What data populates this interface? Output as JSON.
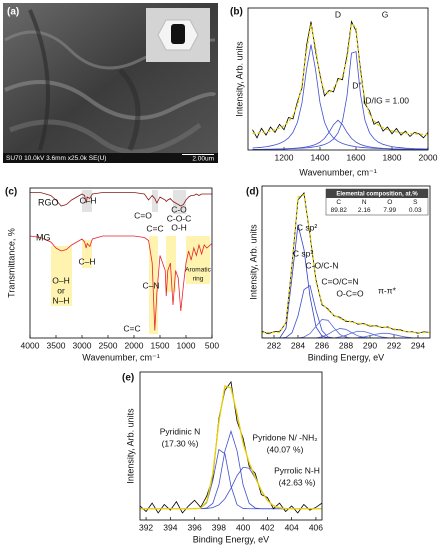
{
  "image_panel": {
    "label": "(a)",
    "info": "SU70 10.0kV 3.6mm x25.0k SE(U)",
    "scale_bar": "2.00um"
  },
  "chart_data": [
    {
      "type": "line",
      "label": "(b)",
      "xlabel": "Wavenumber, cm⁻¹",
      "ylabel": "Intensity, Arb. units",
      "xlim": [
        1000,
        2000
      ],
      "xticks": [
        1200,
        1400,
        1600,
        1800,
        2000
      ],
      "ylim": [
        0,
        1.05
      ],
      "x": [
        1025,
        1050,
        1075,
        1100,
        1125,
        1150,
        1175,
        1200,
        1225,
        1250,
        1275,
        1300,
        1325,
        1350,
        1375,
        1400,
        1425,
        1450,
        1475,
        1500,
        1525,
        1550,
        1575,
        1600,
        1625,
        1650,
        1675,
        1700,
        1725,
        1750,
        1775,
        1800,
        1825,
        1850,
        1875,
        1900,
        1925,
        1950,
        1975,
        2000
      ],
      "series": [
        {
          "color": "#3f4fd0",
          "values": [
            0.015,
            0.017,
            0.02,
            0.024,
            0.03,
            0.038,
            0.048,
            0.064,
            0.089,
            0.131,
            0.206,
            0.35,
            0.596,
            0.78,
            0.596,
            0.35,
            0.206,
            0.131,
            0.089,
            0.064,
            0.048,
            0.038,
            0.03,
            0.024,
            0.02,
            0.017,
            0.015,
            0.013,
            0.011,
            0.01,
            0.009,
            0.008,
            0.007,
            0.006,
            0.006,
            0.005,
            0.005,
            0.005,
            0.004,
            0.004
          ]
        },
        {
          "color": "#3f4fd0",
          "values": [
            0.004,
            0.004,
            0.004,
            0.005,
            0.005,
            0.006,
            0.007,
            0.008,
            0.009,
            0.01,
            0.012,
            0.014,
            0.016,
            0.02,
            0.025,
            0.031,
            0.041,
            0.056,
            0.081,
            0.126,
            0.213,
            0.4,
            0.716,
            0.727,
            0.411,
            0.219,
            0.128,
            0.083,
            0.057,
            0.042,
            0.032,
            0.025,
            0.02,
            0.017,
            0.014,
            0.012,
            0.01,
            0.009,
            0.008,
            0.007
          ]
        },
        {
          "color": "#3f4fd0",
          "values": [
            0.003,
            0.004,
            0.004,
            0.005,
            0.005,
            0.006,
            0.007,
            0.008,
            0.01,
            0.012,
            0.015,
            0.018,
            0.023,
            0.03,
            0.041,
            0.058,
            0.086,
            0.13,
            0.187,
            0.22,
            0.187,
            0.13,
            0.086,
            0.058,
            0.041,
            0.03,
            0.023,
            0.018,
            0.015,
            0.012,
            0.01,
            0.008,
            0.007,
            0.006,
            0.005,
            0.005,
            0.004,
            0.004,
            0.003,
            0.003
          ]
        },
        {
          "color": "#000000",
          "values": [
            0.15,
            0.09,
            0.16,
            0.11,
            0.17,
            0.13,
            0.19,
            0.15,
            0.24,
            0.23,
            0.36,
            0.46,
            0.77,
            0.95,
            0.73,
            0.56,
            0.4,
            0.44,
            0.43,
            0.53,
            0.52,
            0.7,
            0.95,
            0.88,
            0.6,
            0.34,
            0.29,
            0.19,
            0.21,
            0.14,
            0.17,
            0.12,
            0.16,
            0.11,
            0.14,
            0.1,
            0.13,
            0.12,
            0.09,
            0.13
          ]
        },
        {
          "color": "#e6cf00",
          "dashed": true,
          "values": [
            0.122,
            0.125,
            0.128,
            0.134,
            0.14,
            0.15,
            0.162,
            0.18,
            0.208,
            0.253,
            0.333,
            0.482,
            0.735,
            0.93,
            0.762,
            0.539,
            0.433,
            0.417,
            0.457,
            0.51,
            0.548,
            0.668,
            0.932,
            0.909,
            0.572,
            0.366,
            0.266,
            0.214,
            0.183,
            0.164,
            0.151,
            0.141,
            0.134,
            0.129,
            0.125,
            0.122,
            0.119,
            0.118,
            0.115,
            0.114
          ]
        }
      ],
      "annotations": [
        "D",
        "G",
        "D''",
        "ID/IG = 1.00"
      ]
    },
    {
      "type": "line",
      "label": "(c)",
      "xlabel": "Wavenumber, cm⁻¹",
      "ylabel": "Transmittance, %",
      "xlim": [
        4000,
        500
      ],
      "xticks": [
        4000,
        3500,
        3000,
        2500,
        2000,
        1500,
        1000,
        500
      ],
      "ylim": [
        0,
        1
      ],
      "x": [
        4000,
        3800,
        3600,
        3500,
        3400,
        3300,
        3200,
        3000,
        2950,
        2920,
        2900,
        2850,
        2800,
        2600,
        2400,
        2200,
        2000,
        1800,
        1720,
        1650,
        1600,
        1560,
        1500,
        1450,
        1400,
        1380,
        1350,
        1300,
        1250,
        1200,
        1150,
        1100,
        1050,
        1000,
        950,
        900,
        850,
        800,
        750,
        700,
        650,
        600,
        500
      ],
      "series": [
        {
          "name": "RGO",
          "color": "#8b1a1a",
          "values": [
            0.97,
            0.97,
            0.95,
            0.92,
            0.88,
            0.89,
            0.92,
            0.96,
            0.95,
            0.9,
            0.94,
            0.93,
            0.96,
            0.97,
            0.97,
            0.97,
            0.97,
            0.96,
            0.92,
            0.95,
            0.93,
            0.9,
            0.94,
            0.93,
            0.92,
            0.91,
            0.92,
            0.93,
            0.91,
            0.9,
            0.89,
            0.88,
            0.89,
            0.92,
            0.94,
            0.95,
            0.95,
            0.96,
            0.95,
            0.96,
            0.96,
            0.96,
            0.96
          ]
        },
        {
          "name": "MG",
          "color": "#e8242a",
          "values": [
            0.68,
            0.67,
            0.64,
            0.6,
            0.58,
            0.59,
            0.62,
            0.66,
            0.64,
            0.6,
            0.63,
            0.61,
            0.66,
            0.68,
            0.68,
            0.68,
            0.68,
            0.67,
            0.65,
            0.5,
            0.05,
            0.3,
            0.55,
            0.5,
            0.45,
            0.28,
            0.45,
            0.5,
            0.22,
            0.45,
            0.4,
            0.18,
            0.35,
            0.5,
            0.58,
            0.52,
            0.6,
            0.55,
            0.62,
            0.56,
            0.62,
            0.6,
            0.63
          ]
        }
      ],
      "annotations": [
        "C–H",
        "C=O",
        "C=C",
        "C-O",
        "C-O-C",
        "O-H",
        "O–H",
        "or",
        "N–H",
        "C–H",
        "C=C",
        "C–N",
        "Aromatic",
        "ring"
      ]
    },
    {
      "type": "line",
      "label": "(d)",
      "xlabel": "Binding Energy, eV",
      "ylabel": "Intensity, Arb. units",
      "xlim": [
        281,
        295
      ],
      "xticks": [
        282,
        284,
        286,
        288,
        290,
        292,
        294
      ],
      "ylim": [
        0,
        1.1
      ],
      "x": [
        281,
        281.5,
        282,
        282.5,
        283,
        283.5,
        284,
        284.5,
        285,
        285.5,
        286,
        286.5,
        287,
        287.5,
        288,
        288.5,
        289,
        289.5,
        290,
        290.5,
        291,
        291.5,
        292,
        292.5,
        293,
        293.5,
        294,
        294.5,
        295
      ],
      "series": [
        {
          "color": "#2f3fc8",
          "values": [
            0,
            0,
            0,
            0.003,
            0.07,
            0.44,
            0.82,
            0.64,
            0.3,
            0.08,
            0.014,
            0.001,
            0,
            0,
            0,
            0,
            0,
            0,
            0,
            0,
            0,
            0,
            0,
            0,
            0,
            0,
            0,
            0,
            0
          ]
        },
        {
          "color": "#3f4fd0",
          "values": [
            0,
            0,
            0,
            0,
            0.004,
            0.038,
            0.16,
            0.35,
            0.38,
            0.2,
            0.054,
            0.007,
            0,
            0,
            0,
            0,
            0,
            0,
            0,
            0,
            0,
            0,
            0,
            0,
            0,
            0,
            0,
            0,
            0
          ]
        },
        {
          "color": "#5a6ad8",
          "values": [
            0,
            0,
            0,
            0,
            0,
            0,
            0,
            0.007,
            0.032,
            0.085,
            0.134,
            0.128,
            0.073,
            0.025,
            0.005,
            0,
            0,
            0,
            0,
            0,
            0,
            0,
            0,
            0,
            0,
            0,
            0,
            0,
            0
          ]
        },
        {
          "color": "#5a6ad8",
          "values": [
            0,
            0,
            0,
            0,
            0,
            0,
            0,
            0,
            0,
            0,
            0.009,
            0.027,
            0.053,
            0.069,
            0.062,
            0.037,
            0.015,
            0.004,
            0,
            0,
            0,
            0,
            0,
            0,
            0,
            0,
            0,
            0,
            0
          ]
        },
        {
          "color": "#5a6ad8",
          "values": [
            0,
            0,
            0,
            0,
            0,
            0,
            0,
            0,
            0,
            0,
            0,
            0,
            0,
            0.008,
            0.02,
            0.037,
            0.049,
            0.047,
            0.034,
            0.018,
            0.007,
            0.002,
            0,
            0,
            0,
            0,
            0,
            0,
            0
          ]
        },
        {
          "color": "#5a6ad8",
          "values": [
            0,
            0,
            0,
            0,
            0,
            0,
            0,
            0,
            0,
            0,
            0,
            0,
            0,
            0,
            0,
            0,
            0.003,
            0.008,
            0.017,
            0.027,
            0.034,
            0.034,
            0.025,
            0.015,
            0.007,
            0.002,
            0,
            0,
            0
          ]
        },
        {
          "color": "#000000",
          "values": [
            0.05,
            0.03,
            0.045,
            0.05,
            0.11,
            0.53,
            1.0,
            1.05,
            0.74,
            0.42,
            0.24,
            0.21,
            0.16,
            0.15,
            0.12,
            0.12,
            0.1,
            0.105,
            0.085,
            0.09,
            0.075,
            0.08,
            0.06,
            0.06,
            0.045,
            0.045,
            0.035,
            0.045,
            0.04
          ]
        },
        {
          "color": "#e6cf00",
          "dashed": true,
          "values": [
            0.04,
            0.04,
            0.04,
            0.043,
            0.114,
            0.518,
            1.02,
            1.037,
            0.752,
            0.405,
            0.251,
            0.203,
            0.166,
            0.142,
            0.127,
            0.114,
            0.107,
            0.099,
            0.091,
            0.085,
            0.081,
            0.076,
            0.065,
            0.055,
            0.047,
            0.042,
            0.04,
            0.04,
            0.04
          ]
        }
      ],
      "annotations": [
        "C sp²",
        "C sp³",
        "C-O/C-N",
        "C=O/C=N",
        "O-C=O",
        "π-π*"
      ],
      "table": {
        "title": "Elemental composition, at.%",
        "header": [
          "C",
          "N",
          "O",
          "S"
        ],
        "values": [
          89.82,
          2.16,
          7.99,
          0.03
        ]
      }
    },
    {
      "type": "line",
      "label": "(e)",
      "xlabel": "Binding Energy, eV",
      "ylabel": "Intensity, Arb. units",
      "xlim": [
        391.5,
        406.5
      ],
      "xticks": [
        392,
        394,
        396,
        398,
        400,
        402,
        404,
        406
      ],
      "ylim": [
        0,
        1.05
      ],
      "x": [
        391.5,
        392,
        392.5,
        393,
        393.5,
        394,
        394.5,
        395,
        395.5,
        396,
        396.5,
        397,
        397.5,
        398,
        398.5,
        399,
        399.5,
        400,
        400.5,
        401,
        401.5,
        402,
        402.5,
        403,
        403.5,
        404,
        404.5,
        405,
        405.5,
        406,
        406.5
      ],
      "series": [
        {
          "color": "#3f4fd0",
          "values": [
            null,
            null,
            null,
            null,
            null,
            null,
            null,
            null,
            null,
            null,
            0.084,
            0.122,
            0.28,
            0.5,
            0.47,
            0.24,
            0.108,
            0.082,
            0.08,
            0.08,
            0.08,
            0.08,
            0.08,
            0.08,
            0.08,
            null,
            null,
            null,
            null,
            null,
            null
          ]
        },
        {
          "color": "#3f4fd0",
          "values": [
            null,
            null,
            null,
            null,
            null,
            null,
            null,
            null,
            null,
            null,
            0.08,
            0.085,
            0.118,
            0.248,
            0.49,
            0.63,
            0.49,
            0.248,
            0.118,
            0.085,
            0.08,
            0.08,
            0.08,
            0.08,
            0.08,
            null,
            null,
            null,
            null,
            null,
            null
          ]
        },
        {
          "color": "#3f4fd0",
          "values": [
            null,
            null,
            null,
            null,
            null,
            null,
            null,
            null,
            null,
            null,
            0.08,
            0.082,
            0.088,
            0.107,
            0.151,
            0.226,
            0.315,
            0.374,
            0.367,
            0.298,
            0.209,
            0.139,
            0.101,
            0.086,
            0.081,
            null,
            null,
            null,
            null,
            null,
            null
          ]
        },
        {
          "color": "#000000",
          "values": [
            0.1,
            0.06,
            0.12,
            0.05,
            0.11,
            0.07,
            0.13,
            0.05,
            0.1,
            0.14,
            0.09,
            0.17,
            0.3,
            0.72,
            0.92,
            0.98,
            0.7,
            0.58,
            0.38,
            0.33,
            0.18,
            0.16,
            0.08,
            0.12,
            0.06,
            0.1,
            0.05,
            0.11,
            0.07,
            0.09,
            0.12
          ]
        },
        {
          "color": "#e6cf00",
          "values": [
            0.08,
            0.08,
            0.08,
            0.08,
            0.08,
            0.08,
            0.08,
            0.08,
            0.08,
            0.08,
            0.084,
            0.129,
            0.326,
            0.695,
            0.951,
            0.936,
            0.753,
            0.544,
            0.405,
            0.303,
            0.209,
            0.139,
            0.101,
            0.086,
            0.081,
            0.08,
            0.08,
            0.08,
            0.08,
            0.08,
            0.08
          ]
        }
      ],
      "annotations": [
        "Pyridinic N",
        "(17.30 %)",
        "Pyridone N/ -NH₂",
        "(40.07 %)",
        "Pyrrolic N-H",
        "(42.63 %)"
      ]
    }
  ]
}
